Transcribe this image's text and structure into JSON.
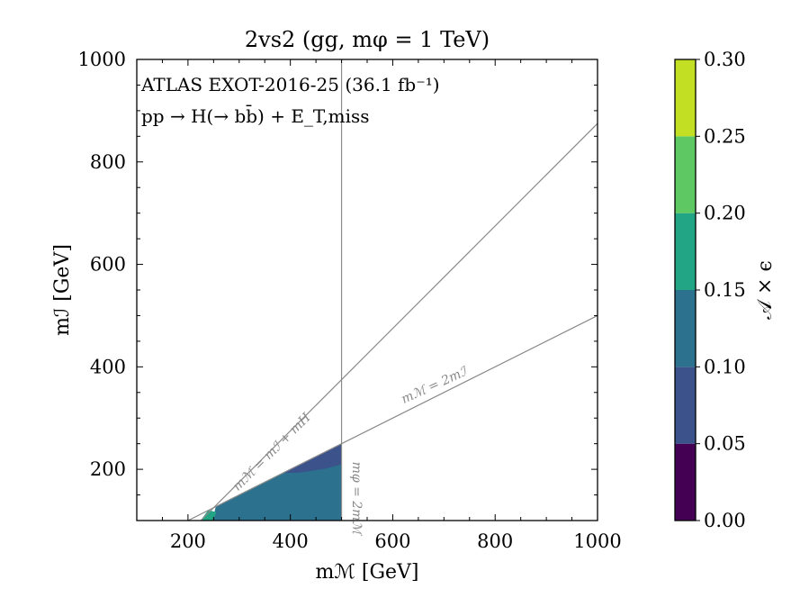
{
  "chart_data": {
    "type": "contour",
    "title": "2vs2 (gg, mφ = 1 TeV)",
    "xlabel": "mℳ [GeV]",
    "ylabel": "mℐ [GeV]",
    "xlim": [
      100,
      1000
    ],
    "ylim": [
      100,
      1000
    ],
    "xticks": [
      200,
      400,
      600,
      800,
      1000
    ],
    "xtick_labels": [
      "200",
      "400",
      "600",
      "800",
      "1000"
    ],
    "yticks": [
      200,
      400,
      600,
      800,
      1000
    ],
    "ytick_labels": [
      "200",
      "400",
      "600",
      "800",
      "1000"
    ],
    "annotations": {
      "experiment": "ATLAS EXOT-2016-25 (36.1 fb⁻¹)",
      "process": "pp → H(→ bb̄) + E_T,miss"
    },
    "reference_lines": [
      {
        "name": "m_M = m_I + m_H",
        "label": "mℳ = mℐ + mH",
        "points": [
          [
            205,
            80
          ],
          [
            1000,
            875
          ]
        ]
      },
      {
        "name": "m_M = 2 m_I",
        "label": "mℳ = 2mℐ",
        "points": [
          [
            200,
            100
          ],
          [
            1000,
            500
          ]
        ]
      },
      {
        "name": "m_phi = 2 m_M",
        "label": "mφ = 2mℳ",
        "points": [
          [
            500,
            100
          ],
          [
            500,
            1000
          ]
        ]
      }
    ],
    "filled_regions": [
      {
        "range": "0.10-0.15",
        "polygon": [
          [
            248,
            100
          ],
          [
            500,
            100
          ],
          [
            500,
            250
          ],
          [
            255,
            128
          ]
        ]
      },
      {
        "range": "0.05-0.10",
        "polygon": [
          [
            385,
            193
          ],
          [
            500,
            250
          ],
          [
            500,
            210
          ],
          [
            470,
            202
          ],
          [
            445,
            198
          ],
          [
            420,
            194
          ]
        ]
      },
      {
        "range": "0.15-0.20",
        "polygon": [
          [
            225,
            100
          ],
          [
            248,
            100
          ],
          [
            255,
            116
          ],
          [
            240,
            120
          ]
        ]
      }
    ],
    "colorbar": {
      "label": "𝒜 × ϵ",
      "levels": [
        0.0,
        0.05,
        0.1,
        0.15,
        0.2,
        0.25,
        0.3
      ],
      "tick_labels": [
        "0.00",
        "0.05",
        "0.10",
        "0.15",
        "0.20",
        "0.25",
        "0.30"
      ],
      "colors": [
        "#440154",
        "#3b528b",
        "#2c728e",
        "#21a585",
        "#5ec962",
        "#c2df23"
      ],
      "range_labels": [
        "0.00-0.05",
        "0.05-0.10",
        "0.10-0.15",
        "0.15-0.20",
        "0.20-0.25",
        "0.25-0.30"
      ]
    }
  }
}
